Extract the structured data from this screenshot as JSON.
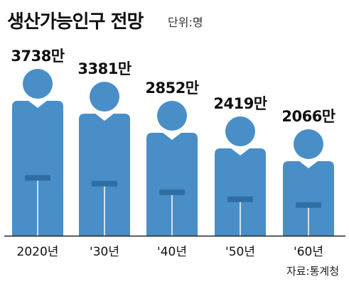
{
  "header": {
    "title": "생산가능인구 전망",
    "unit": "단위:명"
  },
  "footer": {
    "source": "자료:통계청"
  },
  "colors": {
    "figure_body": "#4a8ec8",
    "figure_band": "#2f6ea4",
    "baseline": "#222222"
  },
  "chart_data": {
    "type": "bar",
    "title": "생산가능인구 전망",
    "unit": "단위:명",
    "categories": [
      "2020년",
      "'30년",
      "'40년",
      "'50년",
      "'60년"
    ],
    "values": [
      37380000,
      33810000,
      28520000,
      24190000,
      20660000
    ],
    "value_labels": [
      "3738만",
      "3381만",
      "2852만",
      "2419만",
      "2066만"
    ],
    "bar_style": "person-pictograph",
    "source": "자료:통계청"
  }
}
